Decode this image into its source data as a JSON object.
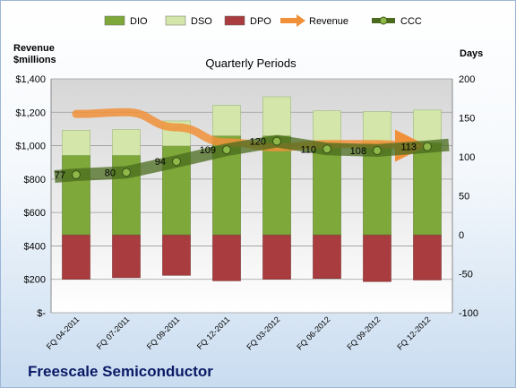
{
  "chart_data": {
    "type": "bar",
    "title": "Quarterly Periods",
    "company": "Freescale Semiconductor",
    "categories": [
      "FQ 04-2011",
      "FQ 07-2011",
      "FQ 09-2011",
      "FQ 12-2011",
      "FQ 03-2012",
      "FQ 06-2012",
      "FQ 09-2012",
      "FQ 12-2012"
    ],
    "left_axis": {
      "label_line1": "Revenue",
      "label_line2": "$millions",
      "ticks": [
        "$-",
        "$200",
        "$400",
        "$600",
        "$800",
        "$1,000",
        "$1,200",
        "$1,400"
      ],
      "ylim": [
        0,
        1400
      ]
    },
    "right_axis": {
      "label": "Days",
      "ticks": [
        "-100",
        "-50",
        "0",
        "50",
        "100",
        "150",
        "200"
      ],
      "ylim": [
        -100,
        200
      ]
    },
    "legend_position": "top",
    "series": [
      {
        "name": "DIO",
        "kind": "stacked-bar",
        "axis": "right",
        "color": "#7ea83a",
        "values": [
          102,
          102,
          114,
          127,
          127,
          118,
          118,
          118
        ]
      },
      {
        "name": "DSO",
        "kind": "stacked-bar",
        "axis": "right",
        "color": "#d4e6a9",
        "values": [
          32,
          33,
          32,
          39,
          50,
          41,
          40,
          42
        ]
      },
      {
        "name": "DPO",
        "kind": "stacked-bar",
        "axis": "right",
        "color": "#a83c3e",
        "values": [
          -57,
          -55,
          -52,
          -59,
          -57,
          -56,
          -60,
          -58
        ]
      },
      {
        "name": "Revenue",
        "kind": "line",
        "axis": "left",
        "color": "#f0913a",
        "values": [
          1190,
          1200,
          1110,
          1020,
          990,
          1010,
          1010,
          1000
        ]
      },
      {
        "name": "CCC",
        "kind": "line",
        "axis": "right",
        "color": "#4a6b1e",
        "values": [
          77,
          80,
          94,
          109,
          120,
          110,
          108,
          113
        ],
        "labels": [
          "77",
          "80",
          "94",
          "109",
          "120",
          "110",
          "108",
          "113"
        ]
      }
    ]
  }
}
